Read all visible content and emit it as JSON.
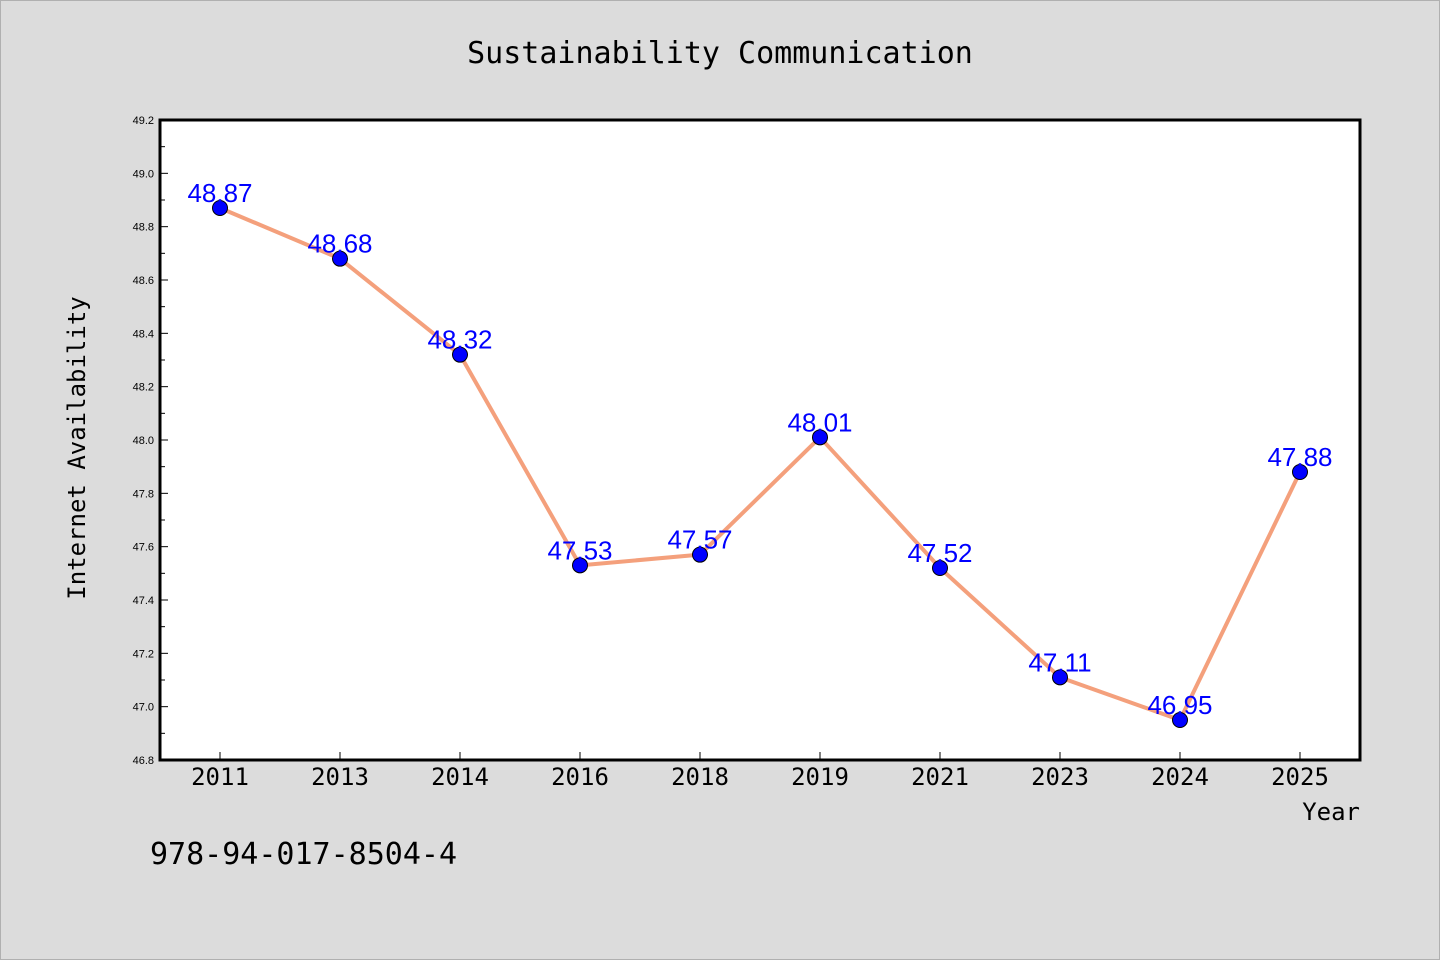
{
  "chart_data": {
    "type": "line",
    "title": "Sustainability Communication",
    "xlabel": "Year",
    "ylabel": "Internet Availability",
    "categories": [
      "2011",
      "2013",
      "2014",
      "2016",
      "2018",
      "2019",
      "2021",
      "2023",
      "2024",
      "2025"
    ],
    "series": [
      {
        "values": [
          48.87,
          48.68,
          48.32,
          47.53,
          47.57,
          48.01,
          47.52,
          47.11,
          46.95,
          47.88
        ]
      }
    ],
    "data_labels": [
      "48.87",
      "48.68",
      "48.32",
      "47.53",
      "47.57",
      "48.01",
      "47.52",
      "47.11",
      "46.95",
      "47.88"
    ],
    "ylim": [
      46.8,
      49.2
    ],
    "yticks": [
      "46.8",
      "47.0",
      "47.2",
      "47.4",
      "47.6",
      "47.8",
      "48.0",
      "48.2",
      "48.4",
      "48.6",
      "48.8",
      "49.0",
      "49.2"
    ],
    "grid": false,
    "legend": "none",
    "annotation": "978-94-017-8504-4",
    "colors": {
      "background": "#dcdcdc",
      "plot_background": "#ffffff",
      "line": "#f4a07c",
      "marker": "#0000ff",
      "data_label": "#0000ff",
      "text": "#000000"
    }
  }
}
